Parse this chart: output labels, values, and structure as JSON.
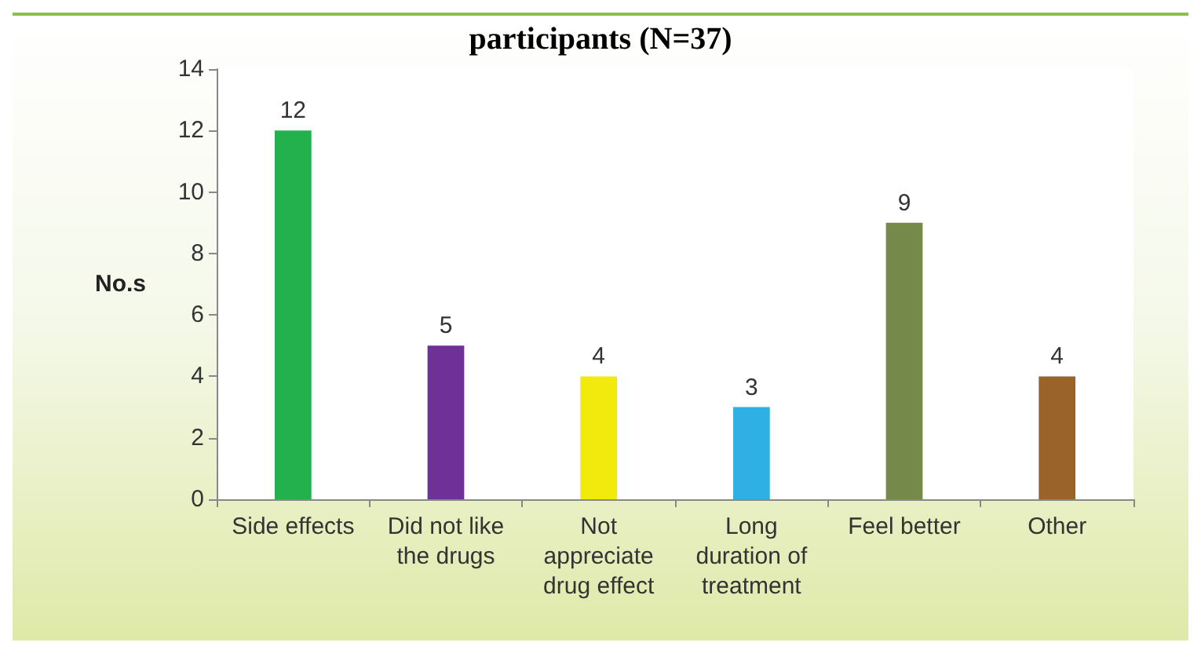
{
  "chart_data": {
    "type": "bar",
    "title": "participants (N=37)",
    "ylabel": "No.s",
    "categories": [
      "Side effects",
      "Did not like\nthe drugs",
      "Not\nappreciate\ndrug effect",
      "Long\nduration of\ntreatment",
      "Feel better",
      "Other"
    ],
    "values": [
      12,
      5,
      4,
      3,
      9,
      4
    ],
    "colors": [
      "#22b14c",
      "#6f3198",
      "#f2ea0c",
      "#2eb0e4",
      "#74894a",
      "#9a6428"
    ],
    "ylim": [
      0,
      14
    ],
    "yticks": [
      0,
      2,
      4,
      6,
      8,
      10,
      12,
      14
    ],
    "data_labels": true
  }
}
